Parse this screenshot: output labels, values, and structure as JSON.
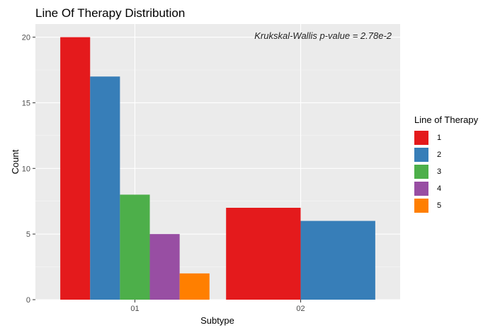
{
  "chart_data": {
    "type": "bar",
    "title": "Line Of Therapy Distribution",
    "annotation": "Krukskal-Wallis p-value = 2.78e-2",
    "xlabel": "Subtype",
    "ylabel": "Count",
    "categories": [
      "01",
      "02"
    ],
    "ylim": [
      0,
      21
    ],
    "yticks": [
      0,
      5,
      10,
      15,
      20
    ],
    "grid": true,
    "legend": {
      "title": "Line of Therapy",
      "placement": "right"
    },
    "series": [
      {
        "name": "1",
        "color": "#E41A1C",
        "values": [
          20,
          7
        ]
      },
      {
        "name": "2",
        "color": "#377EB8",
        "values": [
          17,
          6
        ]
      },
      {
        "name": "3",
        "color": "#4DAF4A",
        "values": [
          8,
          null
        ]
      },
      {
        "name": "4",
        "color": "#984EA3",
        "values": [
          5,
          null
        ]
      },
      {
        "name": "5",
        "color": "#FF7F00",
        "values": [
          2,
          null
        ]
      }
    ]
  }
}
